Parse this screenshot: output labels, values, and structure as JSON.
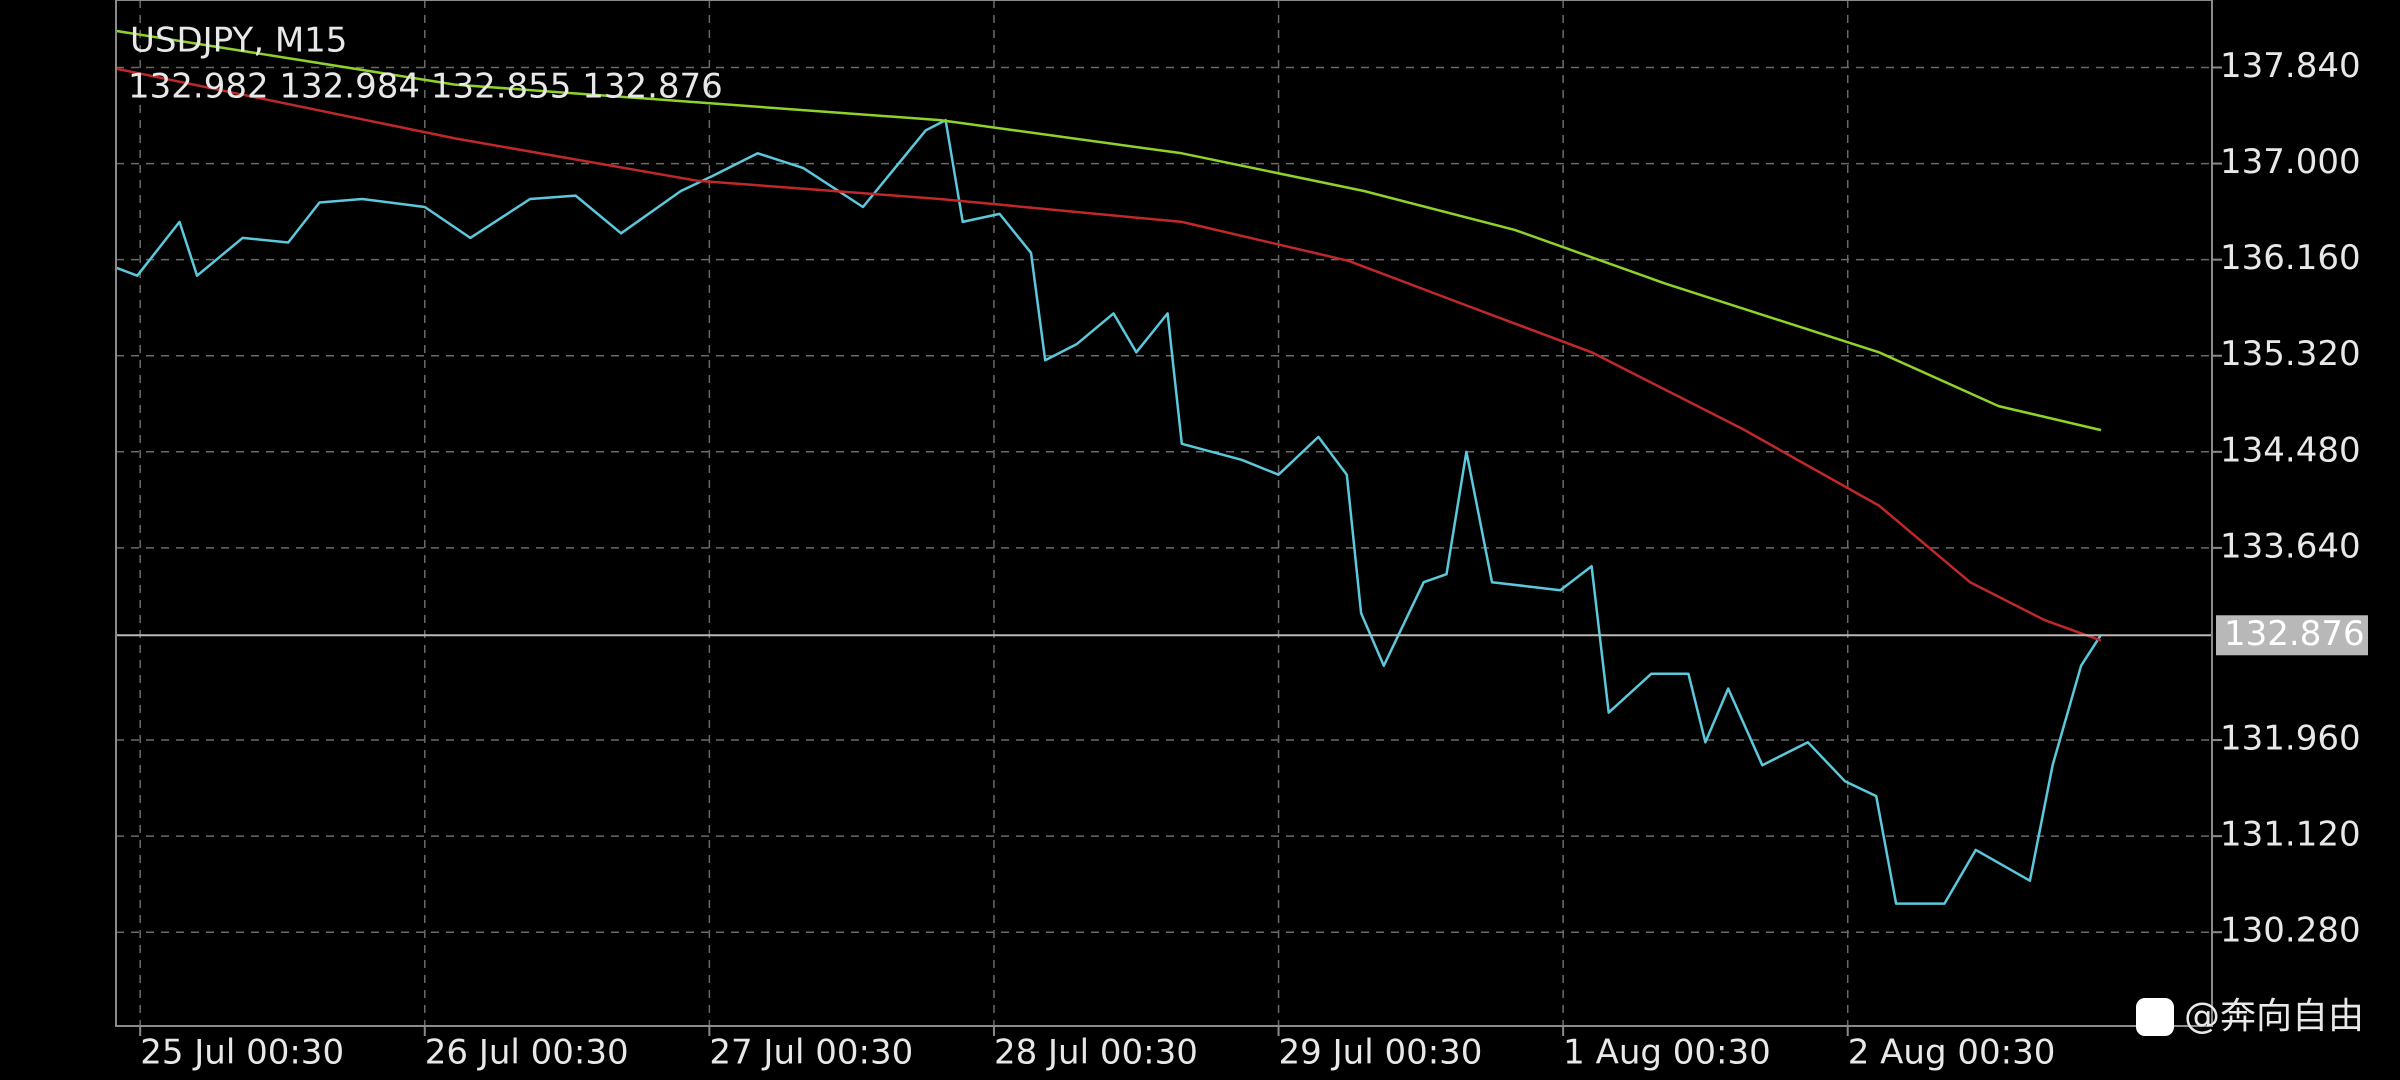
{
  "chart_data": {
    "type": "line",
    "title": "USDJPY, M15",
    "subtitle": "132.982 132.984 132.855 132.876",
    "watermark": "@奔向自由",
    "current_price": 132.876,
    "grid": true,
    "xlim": [
      -0.085,
      7.28
    ],
    "xticks": [
      {
        "value": 0,
        "label": "25 Jul 00:30"
      },
      {
        "value": 1,
        "label": "26 Jul 00:30"
      },
      {
        "value": 2,
        "label": "27 Jul 00:30"
      },
      {
        "value": 3,
        "label": "28 Jul 00:30"
      },
      {
        "value": 4,
        "label": "29 Jul 00:30"
      },
      {
        "value": 5,
        "label": "1 Aug 00:30"
      },
      {
        "value": 6,
        "label": "2 Aug 00:30"
      }
    ],
    "ylim": [
      129.46,
      138.43
    ],
    "yticks": [
      {
        "value": 137.84,
        "label": "137.840"
      },
      {
        "value": 137.0,
        "label": "137.000"
      },
      {
        "value": 136.16,
        "label": "136.160"
      },
      {
        "value": 135.32,
        "label": "135.320"
      },
      {
        "value": 134.48,
        "label": "134.480"
      },
      {
        "value": 133.64,
        "label": "133.640"
      },
      {
        "value": 131.96,
        "label": "131.960"
      },
      {
        "value": 131.12,
        "label": "131.120"
      },
      {
        "value": 130.28,
        "label": "130.280"
      }
    ],
    "series": [
      {
        "color": "#5bc8dc",
        "x": [
          -0.085,
          -0.01,
          0.138,
          0.2,
          0.36,
          0.52,
          0.63,
          0.78,
          1.0,
          1.16,
          1.37,
          1.53,
          1.69,
          1.9,
          2.01,
          2.17,
          2.33,
          2.54,
          2.76,
          2.83,
          2.89,
          3.02,
          3.13,
          3.18,
          3.29,
          3.42,
          3.5,
          3.61,
          3.66,
          3.87,
          4.0,
          4.14,
          4.24,
          4.29,
          4.37,
          4.51,
          4.59,
          4.66,
          4.75,
          4.99,
          5.1,
          5.16,
          5.31,
          5.44,
          5.5,
          5.58,
          5.7,
          5.86,
          5.99,
          6.1,
          6.17,
          6.34,
          6.45,
          6.64,
          6.72,
          6.82,
          6.89
        ],
        "values": [
          136.09,
          136.02,
          136.49,
          136.02,
          136.35,
          136.31,
          136.66,
          136.69,
          136.62,
          136.35,
          136.69,
          136.72,
          136.39,
          136.76,
          136.89,
          137.09,
          136.96,
          136.62,
          137.29,
          137.38,
          136.49,
          136.56,
          136.22,
          135.28,
          135.42,
          135.69,
          135.35,
          135.69,
          134.55,
          134.41,
          134.28,
          134.61,
          134.28,
          133.07,
          132.61,
          133.34,
          133.41,
          134.48,
          133.34,
          133.27,
          133.48,
          132.2,
          132.54,
          132.54,
          131.94,
          132.41,
          131.74,
          131.94,
          131.6,
          131.47,
          130.53,
          130.53,
          131.0,
          130.73,
          131.74,
          132.61,
          132.88
        ]
      },
      {
        "color": "#c0282a",
        "x": [
          -0.085,
          1.106,
          1.957,
          2.81,
          3.66,
          4.245,
          4.67,
          5.1,
          5.63,
          6.11,
          6.43,
          6.69,
          6.89
        ],
        "values": [
          137.83,
          137.22,
          136.85,
          136.69,
          136.49,
          136.15,
          135.75,
          135.35,
          134.68,
          134.01,
          133.34,
          133.01,
          132.83
        ]
      },
      {
        "color": "#8fd32a",
        "x": [
          -0.085,
          1.106,
          2.81,
          3.66,
          4.3,
          4.83,
          5.36,
          6.11,
          6.53,
          6.89
        ],
        "values": [
          138.16,
          137.69,
          137.38,
          137.09,
          136.76,
          136.42,
          135.95,
          135.35,
          134.88,
          134.67
        ]
      }
    ]
  }
}
